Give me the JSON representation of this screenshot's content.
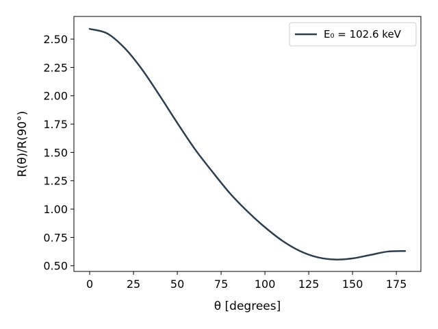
{
  "chart_data": {
    "type": "line",
    "xlabel": "θ [degrees]",
    "ylabel": "R(θ)/R(90°)",
    "xlim": [
      -9,
      189
    ],
    "ylim": [
      0.45,
      2.7
    ],
    "xticks": [
      0,
      25,
      50,
      75,
      100,
      125,
      150,
      175
    ],
    "yticks": [
      0.5,
      0.75,
      1.0,
      1.25,
      1.5,
      1.75,
      2.0,
      2.25,
      2.5
    ],
    "ytick_labels": [
      "0.50",
      "0.75",
      "1.00",
      "1.25",
      "1.50",
      "1.75",
      "2.00",
      "2.25",
      "2.50"
    ],
    "grid": false,
    "legend_position": "top-right",
    "series": [
      {
        "name": "E₀ = 102.6 keV",
        "color": "#2b3d4f",
        "x": [
          0,
          10,
          20,
          30,
          40,
          50,
          60,
          70,
          80,
          90,
          100,
          110,
          120,
          130,
          140,
          150,
          160,
          170,
          180
        ],
        "y": [
          2.59,
          2.55,
          2.42,
          2.23,
          2.0,
          1.76,
          1.53,
          1.33,
          1.14,
          0.98,
          0.84,
          0.72,
          0.63,
          0.575,
          0.555,
          0.565,
          0.595,
          0.625,
          0.63
        ]
      }
    ]
  }
}
